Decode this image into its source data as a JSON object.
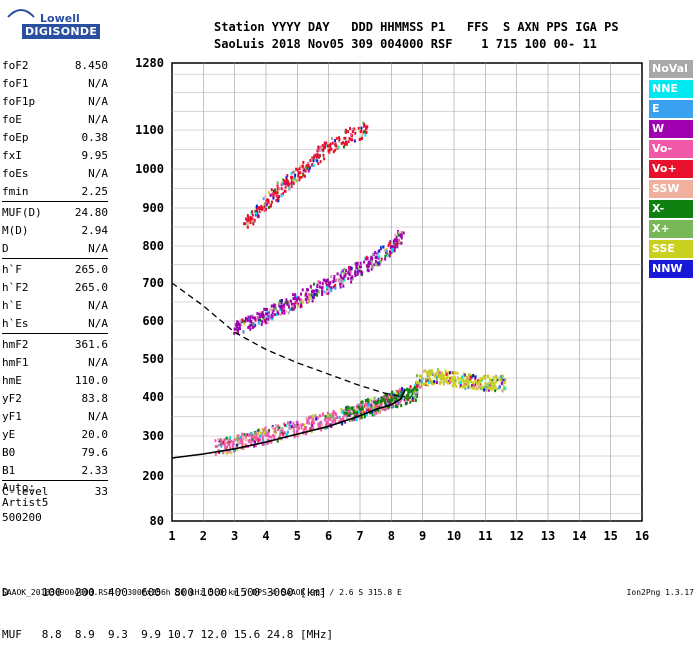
{
  "logo": {
    "line1": "Lowell",
    "line2": "DIGISONDE"
  },
  "header": {
    "line1": "Station YYYY DAY   DDD HHMMSS P1   FFS  S AXN PPS IGA PS",
    "line2": "SaoLuis 2018 Nov05 309 004000 RSF    1 715 100 00- 11"
  },
  "params": [
    {
      "name": "foF2",
      "value": "8.450"
    },
    {
      "name": "foF1",
      "value": "N/A"
    },
    {
      "name": "foF1p",
      "value": "N/A"
    },
    {
      "name": "foE",
      "value": "N/A"
    },
    {
      "name": "foEp",
      "value": "0.38"
    },
    {
      "name": "fxI",
      "value": "9.95"
    },
    {
      "name": "foEs",
      "value": "N/A"
    },
    {
      "name": "fmin",
      "value": "2.25"
    },
    {
      "name": "MUF(D)",
      "value": "24.80"
    },
    {
      "name": "M(D)",
      "value": "2.94"
    },
    {
      "name": "D",
      "value": "N/A"
    },
    {
      "name": "h`F",
      "value": "265.0"
    },
    {
      "name": "h`F2",
      "value": "265.0"
    },
    {
      "name": "h`E",
      "value": "N/A"
    },
    {
      "name": "h`Es",
      "value": "N/A"
    },
    {
      "name": "hmF2",
      "value": "361.6"
    },
    {
      "name": "hmF1",
      "value": "N/A"
    },
    {
      "name": "hmE",
      "value": "110.0"
    },
    {
      "name": "yF2",
      "value": "83.8"
    },
    {
      "name": "yF1",
      "value": "N/A"
    },
    {
      "name": "yE",
      "value": "20.0"
    },
    {
      "name": "B0",
      "value": "79.6"
    },
    {
      "name": "B1",
      "value": "2.33"
    },
    {
      "name": "C-level",
      "value": "33"
    }
  ],
  "auto": {
    "label": "Auto:",
    "artist": "Artist5",
    "version": "500200"
  },
  "bottom_table": {
    "d_line": "D     100  200  400  600  800 1000 1500 3000 [km]",
    "muf_line": "MUF   8.8  8.9  9.3  9.9 10.7 12.0 15.6 24.8 [MHz]"
  },
  "footer": {
    "left": "SAAOK_2018309004000.RSF / 300fx256h 50 kHz 5.0 km / DPS-4 SAAOK 903 / 2.6 S 315.8 E",
    "right": "Ion2Png 1.3.17"
  },
  "legend": [
    {
      "label": "NoVal",
      "color": "#a8a8a8"
    },
    {
      "label": "NNE",
      "color": "#00e8f0"
    },
    {
      "label": "E",
      "color": "#3aa0f0"
    },
    {
      "label": "W",
      "color": "#a000b0"
    },
    {
      "label": "Vo-",
      "color": "#f058a8"
    },
    {
      "label": "Vo+",
      "color": "#e8102c"
    },
    {
      "label": "SSW",
      "color": "#f0b0a0"
    },
    {
      "label": "X-",
      "color": "#108010"
    },
    {
      "label": "X+",
      "color": "#78b858"
    },
    {
      "label": "SSE",
      "color": "#c8d020"
    },
    {
      "label": "NNW",
      "color": "#1818d8"
    }
  ],
  "chart_data": {
    "type": "scatter",
    "xlim": [
      1,
      16
    ],
    "ylim": [
      80,
      1280
    ],
    "x_ticks": [
      1,
      2,
      3,
      4,
      5,
      6,
      7,
      8,
      9,
      10,
      11,
      12,
      13,
      14,
      15,
      16
    ],
    "y_ticks": [
      80,
      200,
      300,
      400,
      500,
      600,
      700,
      800,
      900,
      1000,
      1100,
      1280
    ],
    "grid": true,
    "y_scale": "nonlinear",
    "series": [
      {
        "color_key": "Vo-",
        "points": [
          [
            2.4,
            275
          ],
          [
            2.8,
            280
          ],
          [
            3.2,
            290
          ],
          [
            3.6,
            298
          ],
          [
            4.0,
            305
          ],
          [
            4.5,
            315
          ],
          [
            5.0,
            325
          ],
          [
            5.5,
            335
          ],
          [
            6.0,
            345
          ],
          [
            6.5,
            355
          ],
          [
            7.0,
            368
          ],
          [
            7.5,
            380
          ],
          [
            7.8,
            390
          ],
          [
            8.1,
            400
          ],
          [
            8.3,
            410
          ]
        ]
      },
      {
        "color_key": "W",
        "points": [
          [
            3.0,
            580
          ],
          [
            3.5,
            600
          ],
          [
            4.0,
            620
          ],
          [
            4.5,
            640
          ],
          [
            5.0,
            660
          ],
          [
            5.5,
            680
          ],
          [
            6.0,
            700
          ],
          [
            6.5,
            720
          ],
          [
            7.0,
            745
          ],
          [
            7.5,
            770
          ],
          [
            8.0,
            800
          ],
          [
            8.3,
            830
          ]
        ]
      },
      {
        "color_key": "SSE",
        "points": [
          [
            8.8,
            440
          ],
          [
            9.2,
            460
          ],
          [
            9.6,
            455
          ],
          [
            10.0,
            450
          ],
          [
            10.4,
            445
          ],
          [
            10.8,
            440
          ],
          [
            11.2,
            440
          ],
          [
            11.6,
            440
          ]
        ]
      },
      {
        "color_key": "Vo+",
        "points": [
          [
            3.3,
            860
          ],
          [
            3.8,
            900
          ],
          [
            4.3,
            940
          ],
          [
            4.8,
            980
          ],
          [
            5.3,
            1010
          ],
          [
            5.8,
            1050
          ],
          [
            6.5,
            1080
          ],
          [
            7.2,
            1110
          ]
        ]
      },
      {
        "color_key": "X-",
        "points": [
          [
            6.5,
            360
          ],
          [
            7.0,
            370
          ],
          [
            7.5,
            385
          ],
          [
            8.0,
            395
          ],
          [
            8.5,
            405
          ],
          [
            8.8,
            420
          ]
        ]
      }
    ],
    "profile_solid": [
      [
        1,
        245
      ],
      [
        2,
        255
      ],
      [
        3,
        268
      ],
      [
        4,
        285
      ],
      [
        5,
        305
      ],
      [
        6,
        325
      ],
      [
        7,
        352
      ],
      [
        7.5,
        368
      ],
      [
        8.0,
        380
      ],
      [
        8.3,
        395
      ],
      [
        8.45,
        420
      ]
    ],
    "profile_dashed": [
      [
        1,
        700
      ],
      [
        2,
        640
      ],
      [
        3,
        570
      ],
      [
        4,
        525
      ],
      [
        5,
        490
      ],
      [
        6,
        460
      ],
      [
        7,
        430
      ],
      [
        7.8,
        410
      ],
      [
        8.45,
        400
      ]
    ]
  }
}
